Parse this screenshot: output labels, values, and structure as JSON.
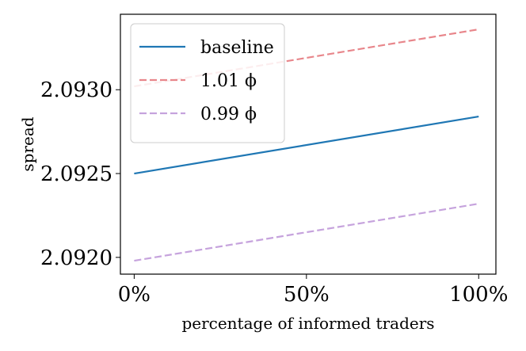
{
  "chart_data": {
    "type": "line",
    "xlabel": "percentage of informed traders",
    "ylabel": "spread",
    "x": [
      0,
      100
    ],
    "xlim": [
      -4,
      105
    ],
    "ylim": [
      2.0919,
      2.09345
    ],
    "xticks": [
      0,
      50,
      100
    ],
    "xtick_labels": [
      "0%",
      "50%",
      "100%"
    ],
    "yticks": [
      2.092,
      2.0925,
      2.093
    ],
    "ytick_labels": [
      "2.0920",
      "2.0925",
      "2.0930"
    ],
    "grid": false,
    "legend_position": "top-left",
    "series": [
      {
        "name": "baseline",
        "values": [
          2.0925,
          2.09284
        ],
        "color": "#1f77b4",
        "dash": "solid"
      },
      {
        "name": "1.01 ϕ",
        "values": [
          2.09302,
          2.09336
        ],
        "color": "#e8868b",
        "dash": "dashed"
      },
      {
        "name": "0.99 ϕ",
        "values": [
          2.09198,
          2.09232
        ],
        "color": "#c6a3dd",
        "dash": "dashed"
      }
    ]
  }
}
